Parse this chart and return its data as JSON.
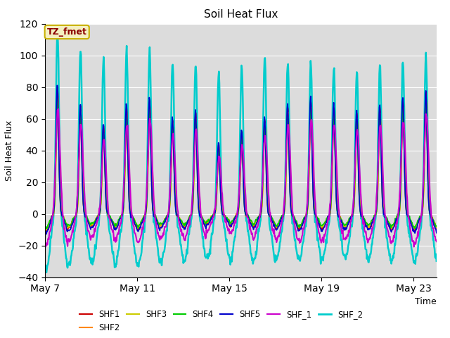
{
  "title": "Soil Heat Flux",
  "ylabel": "Soil Heat Flux",
  "time_label": "Time",
  "ylim": [
    -40,
    120
  ],
  "yticks": [
    -40,
    -20,
    0,
    20,
    40,
    60,
    80,
    100,
    120
  ],
  "xtick_labels": [
    "May 7",
    "May 11",
    "May 15",
    "May 19",
    "May 23"
  ],
  "xtick_days": [
    0,
    4,
    8,
    12,
    16
  ],
  "bg_color": "#e8e8e8",
  "plot_bg": "#dcdcdc",
  "annotation_text": "TZ_fmet",
  "annotation_bg": "#f5f0c0",
  "annotation_border": "#c8b000",
  "annotation_text_color": "#8b0000",
  "series": [
    {
      "name": "SHF1",
      "color": "#cc0000",
      "lw": 1.2
    },
    {
      "name": "SHF2",
      "color": "#ff8800",
      "lw": 1.2
    },
    {
      "name": "SHF3",
      "color": "#cccc00",
      "lw": 1.2
    },
    {
      "name": "SHF4",
      "color": "#00cc00",
      "lw": 1.2
    },
    {
      "name": "SHF5",
      "color": "#0000cc",
      "lw": 1.2
    },
    {
      "name": "SHF_1",
      "color": "#cc00cc",
      "lw": 1.5
    },
    {
      "name": "SHF_2",
      "color": "#00cccc",
      "lw": 1.8
    }
  ],
  "num_days": 17,
  "pts_per_day": 48
}
